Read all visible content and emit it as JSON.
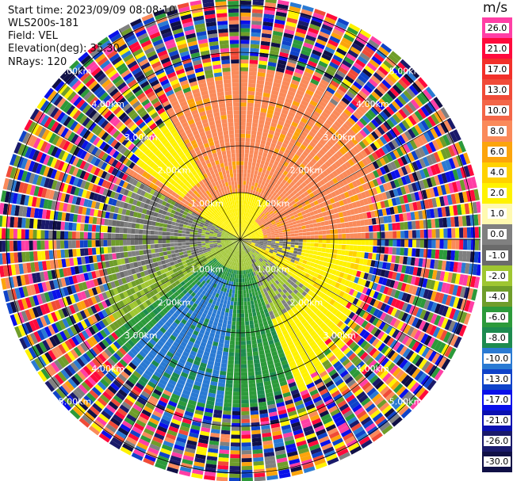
{
  "header": {
    "start_time": "Start time: 2023/09/09 08:08:10",
    "instrument": "WLS200s-181",
    "field": "Field: VEL",
    "elevation": "Elevation(deg): 35.30",
    "nrays": "NRays: 120"
  },
  "colorbar": {
    "unit": "m/s",
    "levels": [
      {
        "label": "26.0",
        "color": "#ff3ea5"
      },
      {
        "label": "21.0",
        "color": "#ff0a3c"
      },
      {
        "label": "17.0",
        "color": "#f2302a"
      },
      {
        "label": "13.0",
        "color": "#f04b38"
      },
      {
        "label": "10.0",
        "color": "#f36648"
      },
      {
        "label": "8.0",
        "color": "#fa8a5a"
      },
      {
        "label": "6.0",
        "color": "#fca40c"
      },
      {
        "label": "4.0",
        "color": "#ffd100"
      },
      {
        "label": "2.0",
        "color": "#fff200"
      },
      {
        "label": "1.0",
        "color": "#fff9b0"
      },
      {
        "label": "0.0",
        "color": "#808080"
      },
      {
        "label": "-1.0",
        "color": "#6b6b6b"
      },
      {
        "label": "-2.0",
        "color": "#9fc631"
      },
      {
        "label": "-4.0",
        "color": "#6f9d2a"
      },
      {
        "label": "-6.0",
        "color": "#2c9a3a"
      },
      {
        "label": "-8.0",
        "color": "#1d8b4f"
      },
      {
        "label": "-10.0",
        "color": "#2a7ad3"
      },
      {
        "label": "-13.0",
        "color": "#0f43c9"
      },
      {
        "label": "-17.0",
        "color": "#0a10ea"
      },
      {
        "label": "-21.0",
        "color": "#0a10b0"
      },
      {
        "label": "-26.0",
        "color": "#1a1a6a"
      },
      {
        "label": "-30.0",
        "color": "#101046"
      }
    ]
  },
  "range_rings": [
    {
      "label": "1.00km"
    },
    {
      "label": "2.00km"
    },
    {
      "label": "3.00km"
    },
    {
      "label": "4.00km"
    },
    {
      "label": "5.00km"
    }
  ]
}
